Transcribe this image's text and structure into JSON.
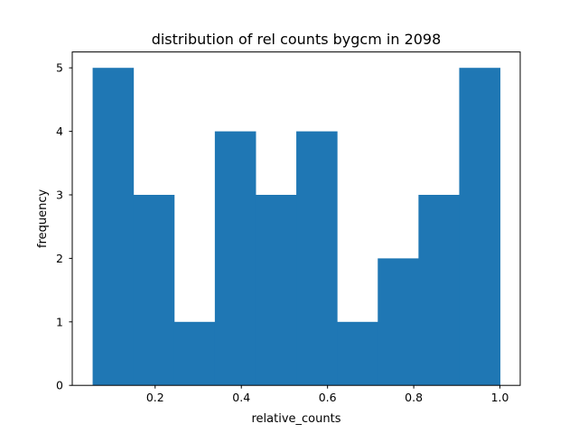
{
  "chart_data": {
    "type": "histogram",
    "title": "distribution of rel counts bygcm in 2098",
    "xlabel": "relative_counts",
    "ylabel": "frequency",
    "bin_edges": [
      0.055,
      0.1495,
      0.244,
      0.3385,
      0.433,
      0.5275,
      0.622,
      0.7165,
      0.811,
      0.9055,
      1.0
    ],
    "counts": [
      5,
      3,
      1,
      4,
      3,
      4,
      1,
      2,
      3,
      5
    ],
    "xlim": [
      0.0077,
      1.047
    ],
    "ylim": [
      0,
      5.25
    ],
    "xticks": [
      0.2,
      0.4,
      0.6,
      0.8,
      1.0
    ],
    "xtick_labels": [
      "0.2",
      "0.4",
      "0.6",
      "0.8",
      "1.0"
    ],
    "yticks": [
      0,
      1,
      2,
      3,
      4,
      5
    ],
    "ytick_labels": [
      "0",
      "1",
      "2",
      "3",
      "4",
      "5"
    ],
    "bar_color": "#1f77b4",
    "grid": false,
    "legend": false
  }
}
